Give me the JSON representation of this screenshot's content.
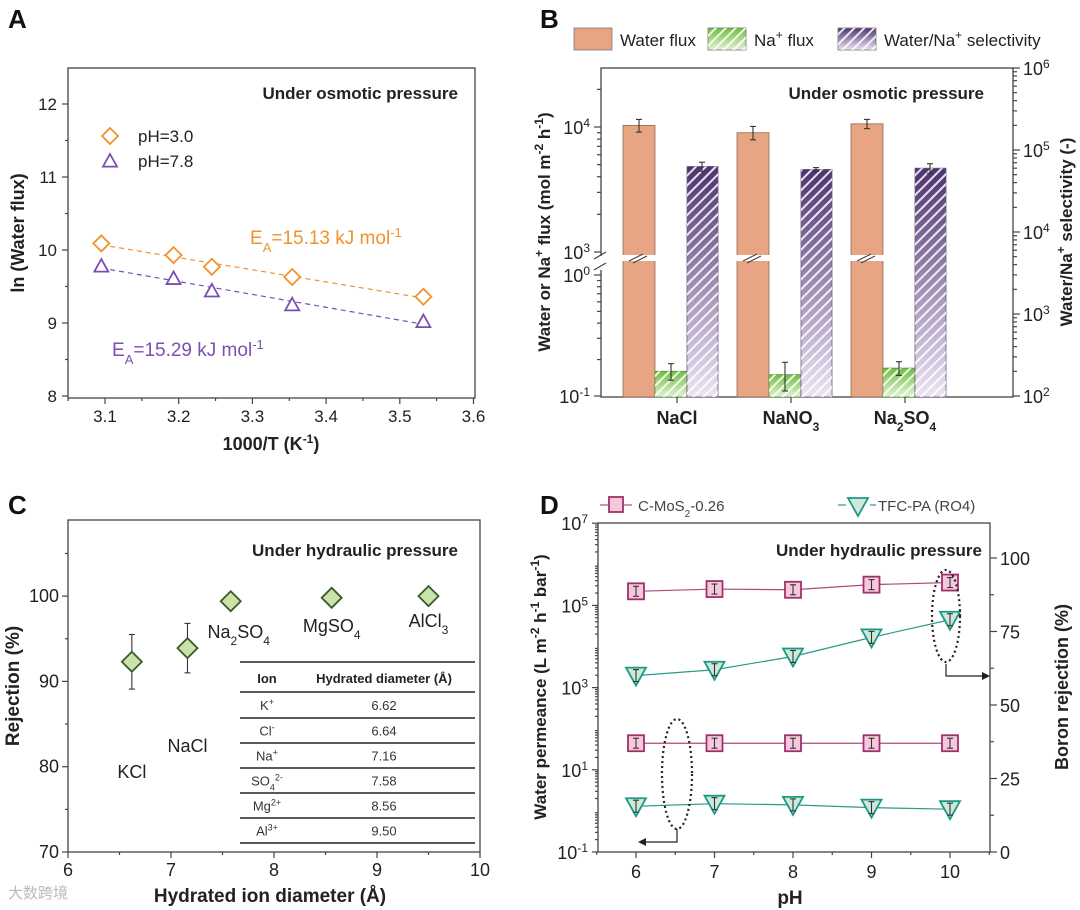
{
  "watermark": "大数跨境",
  "panels": [
    "A",
    "B",
    "C",
    "D"
  ],
  "colors": {
    "orange": "#f0922e",
    "purple": "#7b4fb0",
    "water": "#e8a583",
    "green": "#7dc44e",
    "violet": "#5b3c7d",
    "diamond_fill": "#c9e3a8",
    "pink_fill": "#f4c9dc",
    "pink": "#a0306c",
    "teal": "#1a9a86",
    "teal_fill": "#cfe8d8"
  },
  "chart_data": [
    {
      "panel": "A",
      "type": "scatter",
      "annotation": "Under osmotic pressure",
      "xlabel": "1000/T (K^{-1})",
      "ylabel": "ln (Water flux)",
      "xlim": [
        3.05,
        3.6
      ],
      "ylim": [
        8,
        12.5
      ],
      "xticks": [
        3.1,
        3.2,
        3.3,
        3.4,
        3.5,
        3.6
      ],
      "yticks": [
        8,
        9,
        10,
        11,
        12
      ],
      "legend_position": "top-left",
      "series": [
        {
          "name": "pH=3.0",
          "marker": "diamond",
          "x": [
            3.095,
            3.193,
            3.245,
            3.354,
            3.532
          ],
          "y": [
            10.09,
            9.93,
            9.77,
            9.63,
            9.36
          ],
          "fit_label": "E_{A}=15.13 kJ mol^{-1}"
        },
        {
          "name": "pH=7.8",
          "marker": "triangle",
          "x": [
            3.095,
            3.193,
            3.245,
            3.354,
            3.532
          ],
          "y": [
            9.78,
            9.61,
            9.44,
            9.25,
            9.02
          ],
          "fit_label": "E_{A}=15.29 kJ mol^{-1}"
        }
      ]
    },
    {
      "panel": "B",
      "type": "bar",
      "annotation": "Under osmotic pressure",
      "categories": [
        "NaCl",
        "NaNO_{3}",
        "Na_{2}SO_{4}"
      ],
      "ylabel": "Water or Na^{+} flux (mol m^{-2} h^{-1})",
      "y2label": "Water/Na^{+} selectivity (-)",
      "yscale": "log (broken axis)",
      "ylim_lower": [
        0.1,
        1
      ],
      "ylim_upper": [
        1000,
        30000
      ],
      "yticks": [
        "10^{-1}",
        "10^{0}",
        "10^{3}",
        "10^{4}"
      ],
      "y2lim": [
        100,
        1000000
      ],
      "y2ticks": [
        "10^{2}",
        "10^{3}",
        "10^{4}",
        "10^{5}",
        "10^{6}"
      ],
      "legend_position": "top",
      "series": [
        {
          "name": "Water flux",
          "axis": "left",
          "values": [
            10300,
            9000,
            10600
          ],
          "errors": [
            1200,
            1100,
            900
          ]
        },
        {
          "name": "Na^{+} flux",
          "axis": "left",
          "values": [
            0.16,
            0.15,
            0.17
          ],
          "errors": [
            0.025,
            0.04,
            0.022
          ]
        },
        {
          "name": "Water/Na^{+} selectivity",
          "axis": "right",
          "values": [
            63000,
            58000,
            60000
          ],
          "errors": [
            8000,
            3000,
            8000
          ]
        }
      ]
    },
    {
      "panel": "C",
      "type": "scatter",
      "annotation": "Under hydraulic pressure",
      "xlabel": "Hydrated ion diameter (Å)",
      "ylabel": "Rejection (%)",
      "xlim": [
        6,
        10
      ],
      "ylim": [
        70,
        109
      ],
      "xticks": [
        6,
        7,
        8,
        9,
        10
      ],
      "yticks": [
        70,
        80,
        90,
        100
      ],
      "points": [
        {
          "label": "KCl",
          "x": 6.62,
          "y": 92.3,
          "err": 3.2
        },
        {
          "label": "NaCl",
          "x": 7.16,
          "y": 93.9,
          "err": 2.9
        },
        {
          "label": "Na_{2}SO_{4}",
          "x": 7.58,
          "y": 99.4,
          "err": 0.6
        },
        {
          "label": "MgSO_{4}",
          "x": 8.56,
          "y": 99.8,
          "err": 0.5
        },
        {
          "label": "AlCl_{3}",
          "x": 9.5,
          "y": 100.0,
          "err": 0.5
        }
      ],
      "table": {
        "headers": [
          "Ion",
          "Hydrated  diameter (Å)"
        ],
        "rows": [
          [
            "K^{+}",
            "6.62"
          ],
          [
            "Cl^{-}",
            "6.64"
          ],
          [
            "Na^{+}",
            "7.16"
          ],
          [
            "SO_{4}^{2-}",
            "7.58"
          ],
          [
            "Mg^{2+}",
            "8.56"
          ],
          [
            "Al^{3+}",
            "9.50"
          ]
        ]
      }
    },
    {
      "panel": "D",
      "type": "line",
      "annotation": "Under hydraulic pressure",
      "xlabel": "pH",
      "ylabel": "Water permeance (L m^{-2} h^{-1} bar^{-1})",
      "y2label": "Boron rejection (%)",
      "xlim": [
        5.5,
        10.5
      ],
      "ylim": [
        0.1,
        10000000
      ],
      "y2lim": [
        0,
        112
      ],
      "xticks": [
        6,
        7,
        8,
        9,
        10
      ],
      "yticks": [
        "10^{-1}",
        "10^{1}",
        "10^{3}",
        "10^{5}",
        "10^{7}"
      ],
      "y2ticks": [
        0,
        25,
        50,
        75,
        100
      ],
      "legend": [
        "C-MoS_{2}-0.26",
        "TFC-PA (RO4)"
      ],
      "legend_position": "top",
      "x": [
        6,
        7,
        8,
        9,
        10
      ],
      "series": [
        {
          "name": "C-MoS_{2}-0.26",
          "metric": "Water permeance",
          "axis": "left",
          "values": [
            220000,
            250000,
            240000,
            320000,
            360000
          ]
        },
        {
          "name": "TFC-PA (RO4)",
          "metric": "Water permeance",
          "axis": "left",
          "values": [
            1.3,
            1.5,
            1.4,
            1.2,
            1.1
          ]
        },
        {
          "name": "C-MoS_{2}-0.26",
          "metric": "Boron rejection",
          "axis": "right",
          "values": [
            37,
            37,
            37,
            37,
            37
          ]
        },
        {
          "name": "TFC-PA (RO4)",
          "metric": "Boron rejection",
          "axis": "right",
          "values": [
            60,
            62,
            66.5,
            73,
            79
          ]
        }
      ]
    }
  ]
}
